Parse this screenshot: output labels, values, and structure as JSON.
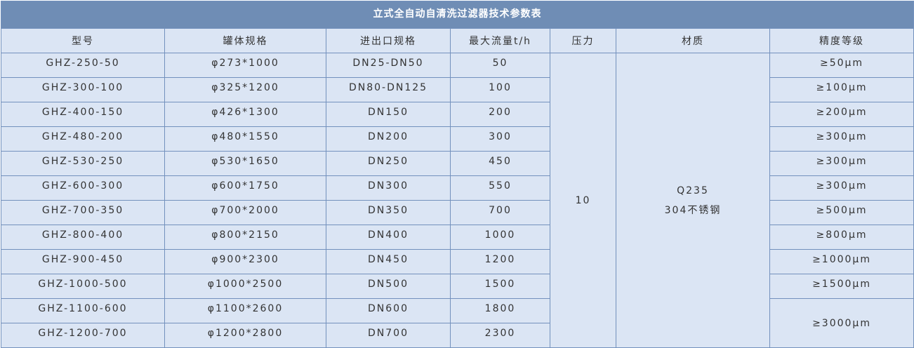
{
  "title": "立式全自动自清洗过滤器技术参数表",
  "headers": [
    "型号",
    "罐体规格",
    "进出口规格",
    "最大流量t/h",
    "压力",
    "材质",
    "精度等级"
  ],
  "pressure": "10",
  "material": [
    "Q235",
    "304不锈钢"
  ],
  "rows": [
    {
      "model": "GHZ-250-50",
      "tank": "φ273*1000",
      "port": "DN25-DN50",
      "flow": "50",
      "precision": "≥50μm"
    },
    {
      "model": "GHZ-300-100",
      "tank": "φ325*1200",
      "port": "DN80-DN125",
      "flow": "100",
      "precision": "≥100μm"
    },
    {
      "model": "GHZ-400-150",
      "tank": "φ426*1300",
      "port": "DN150",
      "flow": "200",
      "precision": "≥200μm"
    },
    {
      "model": "GHZ-480-200",
      "tank": "φ480*1550",
      "port": "DN200",
      "flow": "300",
      "precision": "≥300μm"
    },
    {
      "model": "GHZ-530-250",
      "tank": "φ530*1650",
      "port": "DN250",
      "flow": "450",
      "precision": "≥300μm"
    },
    {
      "model": "GHZ-600-300",
      "tank": "φ600*1750",
      "port": "DN300",
      "flow": "550",
      "precision": "≥300μm"
    },
    {
      "model": "GHZ-700-350",
      "tank": "φ700*2000",
      "port": "DN350",
      "flow": "700",
      "precision": "≥500μm"
    },
    {
      "model": "GHZ-800-400",
      "tank": "φ800*2150",
      "port": "DN400",
      "flow": "1000",
      "precision": "≥800μm"
    },
    {
      "model": "GHZ-900-450",
      "tank": "φ900*2300",
      "port": "DN450",
      "flow": "1200",
      "precision": "≥1000μm"
    },
    {
      "model": "GHZ-1000-500",
      "tank": "φ1000*2500",
      "port": "DN500",
      "flow": "1500",
      "precision": "≥1500μm"
    },
    {
      "model": "GHZ-1100-600",
      "tank": "φ1100*2600",
      "port": "DN600",
      "flow": "1800",
      "precision": "≥3000μm"
    },
    {
      "model": "GHZ-1200-700",
      "tank": "φ1200*2800",
      "port": "DN700",
      "flow": "2300",
      "precision": null
    }
  ]
}
